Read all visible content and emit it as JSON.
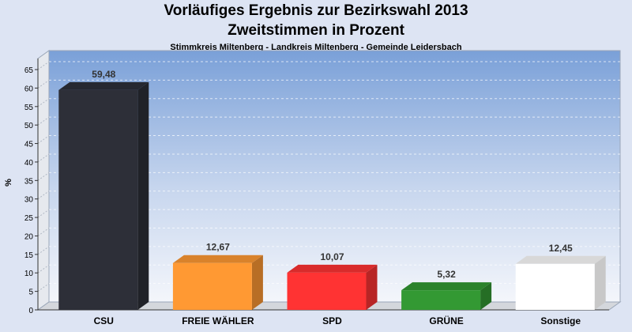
{
  "chart_data": {
    "type": "bar",
    "title": "Vorläufiges Ergebnis zur Bezirkswahl 2013",
    "subtitle": "Zweitstimmen in Prozent",
    "subtitle2": "Stimmkreis Miltenberg - Landkreis Miltenberg - Gemeinde Leidersbach",
    "ylabel": "%",
    "xlabel": "",
    "ylim": [
      0,
      68
    ],
    "yticks": [
      0,
      5,
      10,
      15,
      20,
      25,
      30,
      35,
      40,
      45,
      50,
      55,
      60,
      65
    ],
    "grid": true,
    "categories": [
      "CSU",
      "FREIE WÄHLER",
      "SPD",
      "GRÜNE",
      "Sonstige"
    ],
    "values": [
      59.48,
      12.67,
      10.07,
      5.32,
      12.45
    ],
    "value_labels": [
      "59,48",
      "12,67",
      "10,07",
      "5,32",
      "12,45"
    ],
    "colors": [
      "#2d2f38",
      "#ff9933",
      "#ff3333",
      "#339933",
      "#ffffff"
    ]
  }
}
